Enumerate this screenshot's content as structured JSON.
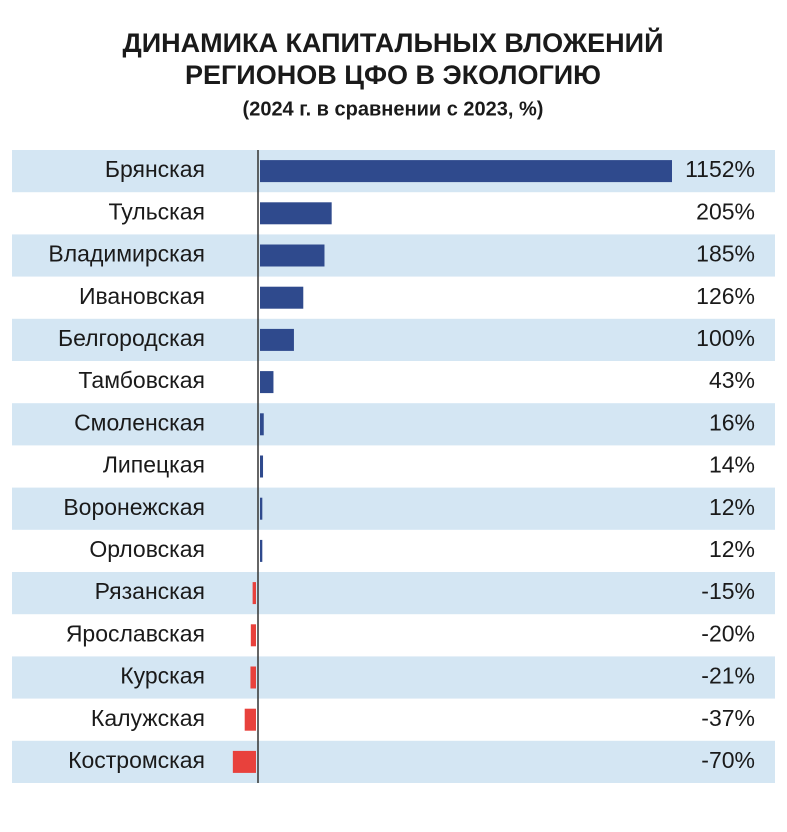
{
  "chart_data": {
    "type": "bar",
    "orientation": "horizontal",
    "title": [
      "ДИНАМИКА КАПИТАЛЬНЫХ ВЛОЖЕНИЙ",
      "РЕГИОНОВ ЦФО В ЭКОЛОГИЮ"
    ],
    "subtitle": "(2024 г. в сравнении с 2023, %)",
    "categories": [
      "Брянская",
      "Тульская",
      "Владимирская",
      "Ивановская",
      "Белгородская",
      "Тамбовская",
      "Смоленская",
      "Липецкая",
      "Воронежская",
      "Орловская",
      "Рязанская",
      "Ярославская",
      "Курская",
      "Калужская",
      "Костромская"
    ],
    "values": [
      1152,
      205,
      185,
      126,
      100,
      43,
      16,
      14,
      12,
      12,
      -15,
      -20,
      -21,
      -37,
      -70
    ],
    "value_labels": [
      "1152%",
      "205%",
      "185%",
      "126%",
      "100%",
      "43%",
      "16%",
      "14%",
      "12%",
      "12%",
      "-15%",
      "-20%",
      "-21%",
      "-37%",
      "-70%"
    ],
    "positive_color": "#2f4a8d",
    "negative_color": "#e8413c",
    "stripe_color": "#d4e6f3"
  }
}
